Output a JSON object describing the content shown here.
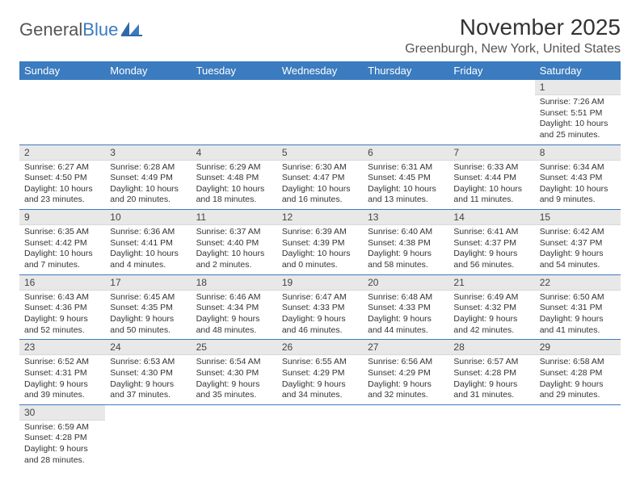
{
  "logo": {
    "first": "General",
    "second": "Blue"
  },
  "title": "November 2025",
  "location": "Greenburgh, New York, United States",
  "colors": {
    "header_bg": "#3b7bbf",
    "header_text": "#ffffff",
    "daynum_bg": "#e8e8e8",
    "row_border": "#3b7bbf",
    "page_bg": "#ffffff",
    "text": "#333333"
  },
  "weekdays": [
    "Sunday",
    "Monday",
    "Tuesday",
    "Wednesday",
    "Thursday",
    "Friday",
    "Saturday"
  ],
  "weeks": [
    [
      null,
      null,
      null,
      null,
      null,
      null,
      {
        "n": "1",
        "sunrise": "Sunrise: 7:26 AM",
        "sunset": "Sunset: 5:51 PM",
        "daylight": "Daylight: 10 hours and 25 minutes."
      }
    ],
    [
      {
        "n": "2",
        "sunrise": "Sunrise: 6:27 AM",
        "sunset": "Sunset: 4:50 PM",
        "daylight": "Daylight: 10 hours and 23 minutes."
      },
      {
        "n": "3",
        "sunrise": "Sunrise: 6:28 AM",
        "sunset": "Sunset: 4:49 PM",
        "daylight": "Daylight: 10 hours and 20 minutes."
      },
      {
        "n": "4",
        "sunrise": "Sunrise: 6:29 AM",
        "sunset": "Sunset: 4:48 PM",
        "daylight": "Daylight: 10 hours and 18 minutes."
      },
      {
        "n": "5",
        "sunrise": "Sunrise: 6:30 AM",
        "sunset": "Sunset: 4:47 PM",
        "daylight": "Daylight: 10 hours and 16 minutes."
      },
      {
        "n": "6",
        "sunrise": "Sunrise: 6:31 AM",
        "sunset": "Sunset: 4:45 PM",
        "daylight": "Daylight: 10 hours and 13 minutes."
      },
      {
        "n": "7",
        "sunrise": "Sunrise: 6:33 AM",
        "sunset": "Sunset: 4:44 PM",
        "daylight": "Daylight: 10 hours and 11 minutes."
      },
      {
        "n": "8",
        "sunrise": "Sunrise: 6:34 AM",
        "sunset": "Sunset: 4:43 PM",
        "daylight": "Daylight: 10 hours and 9 minutes."
      }
    ],
    [
      {
        "n": "9",
        "sunrise": "Sunrise: 6:35 AM",
        "sunset": "Sunset: 4:42 PM",
        "daylight": "Daylight: 10 hours and 7 minutes."
      },
      {
        "n": "10",
        "sunrise": "Sunrise: 6:36 AM",
        "sunset": "Sunset: 4:41 PM",
        "daylight": "Daylight: 10 hours and 4 minutes."
      },
      {
        "n": "11",
        "sunrise": "Sunrise: 6:37 AM",
        "sunset": "Sunset: 4:40 PM",
        "daylight": "Daylight: 10 hours and 2 minutes."
      },
      {
        "n": "12",
        "sunrise": "Sunrise: 6:39 AM",
        "sunset": "Sunset: 4:39 PM",
        "daylight": "Daylight: 10 hours and 0 minutes."
      },
      {
        "n": "13",
        "sunrise": "Sunrise: 6:40 AM",
        "sunset": "Sunset: 4:38 PM",
        "daylight": "Daylight: 9 hours and 58 minutes."
      },
      {
        "n": "14",
        "sunrise": "Sunrise: 6:41 AM",
        "sunset": "Sunset: 4:37 PM",
        "daylight": "Daylight: 9 hours and 56 minutes."
      },
      {
        "n": "15",
        "sunrise": "Sunrise: 6:42 AM",
        "sunset": "Sunset: 4:37 PM",
        "daylight": "Daylight: 9 hours and 54 minutes."
      }
    ],
    [
      {
        "n": "16",
        "sunrise": "Sunrise: 6:43 AM",
        "sunset": "Sunset: 4:36 PM",
        "daylight": "Daylight: 9 hours and 52 minutes."
      },
      {
        "n": "17",
        "sunrise": "Sunrise: 6:45 AM",
        "sunset": "Sunset: 4:35 PM",
        "daylight": "Daylight: 9 hours and 50 minutes."
      },
      {
        "n": "18",
        "sunrise": "Sunrise: 6:46 AM",
        "sunset": "Sunset: 4:34 PM",
        "daylight": "Daylight: 9 hours and 48 minutes."
      },
      {
        "n": "19",
        "sunrise": "Sunrise: 6:47 AM",
        "sunset": "Sunset: 4:33 PM",
        "daylight": "Daylight: 9 hours and 46 minutes."
      },
      {
        "n": "20",
        "sunrise": "Sunrise: 6:48 AM",
        "sunset": "Sunset: 4:33 PM",
        "daylight": "Daylight: 9 hours and 44 minutes."
      },
      {
        "n": "21",
        "sunrise": "Sunrise: 6:49 AM",
        "sunset": "Sunset: 4:32 PM",
        "daylight": "Daylight: 9 hours and 42 minutes."
      },
      {
        "n": "22",
        "sunrise": "Sunrise: 6:50 AM",
        "sunset": "Sunset: 4:31 PM",
        "daylight": "Daylight: 9 hours and 41 minutes."
      }
    ],
    [
      {
        "n": "23",
        "sunrise": "Sunrise: 6:52 AM",
        "sunset": "Sunset: 4:31 PM",
        "daylight": "Daylight: 9 hours and 39 minutes."
      },
      {
        "n": "24",
        "sunrise": "Sunrise: 6:53 AM",
        "sunset": "Sunset: 4:30 PM",
        "daylight": "Daylight: 9 hours and 37 minutes."
      },
      {
        "n": "25",
        "sunrise": "Sunrise: 6:54 AM",
        "sunset": "Sunset: 4:30 PM",
        "daylight": "Daylight: 9 hours and 35 minutes."
      },
      {
        "n": "26",
        "sunrise": "Sunrise: 6:55 AM",
        "sunset": "Sunset: 4:29 PM",
        "daylight": "Daylight: 9 hours and 34 minutes."
      },
      {
        "n": "27",
        "sunrise": "Sunrise: 6:56 AM",
        "sunset": "Sunset: 4:29 PM",
        "daylight": "Daylight: 9 hours and 32 minutes."
      },
      {
        "n": "28",
        "sunrise": "Sunrise: 6:57 AM",
        "sunset": "Sunset: 4:28 PM",
        "daylight": "Daylight: 9 hours and 31 minutes."
      },
      {
        "n": "29",
        "sunrise": "Sunrise: 6:58 AM",
        "sunset": "Sunset: 4:28 PM",
        "daylight": "Daylight: 9 hours and 29 minutes."
      }
    ],
    [
      {
        "n": "30",
        "sunrise": "Sunrise: 6:59 AM",
        "sunset": "Sunset: 4:28 PM",
        "daylight": "Daylight: 9 hours and 28 minutes."
      },
      null,
      null,
      null,
      null,
      null,
      null
    ]
  ]
}
